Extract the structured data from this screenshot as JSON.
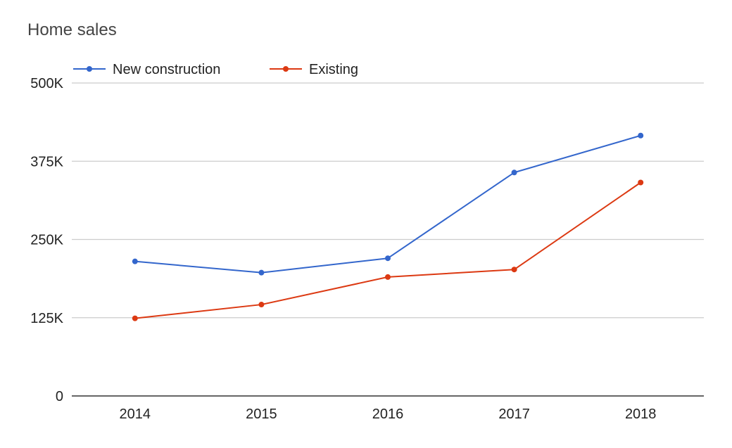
{
  "chart_data": {
    "type": "line",
    "title": "Home sales",
    "xlabel": "",
    "ylabel": "",
    "categories": [
      "2014",
      "2015",
      "2016",
      "2017",
      "2018"
    ],
    "series": [
      {
        "name": "New construction",
        "color": "#3366cc",
        "values": [
          215000,
          197000,
          220000,
          357000,
          416000
        ]
      },
      {
        "name": "Existing",
        "color": "#dc3912",
        "values": [
          124000,
          146000,
          190000,
          202000,
          341000
        ]
      }
    ],
    "ylim": [
      0,
      500000
    ],
    "yticks": [
      {
        "value": 0,
        "label": "0"
      },
      {
        "value": 125000,
        "label": "125K"
      },
      {
        "value": 250000,
        "label": "250K"
      },
      {
        "value": 375000,
        "label": "375K"
      },
      {
        "value": 500000,
        "label": "500K"
      }
    ],
    "grid": true,
    "legend_position": "top-left",
    "colors": {
      "grid": "#cccccc",
      "axis": "#333333",
      "title": "#444444",
      "tick_text": "#222222"
    }
  }
}
